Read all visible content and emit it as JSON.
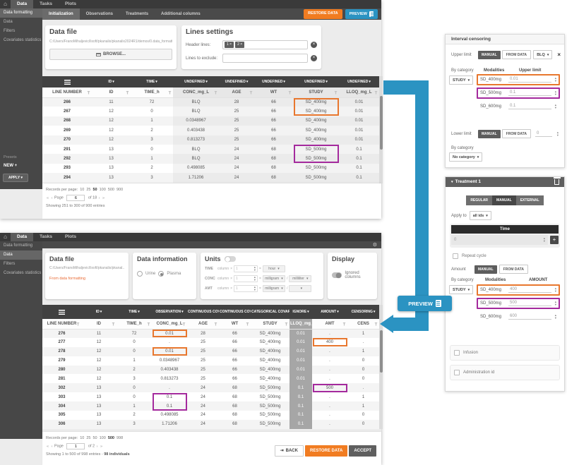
{
  "colors": {
    "accent_blue": "#2b93c2",
    "accent_orange": "#f17c21",
    "highlight_orange": "#e8772e",
    "highlight_purple": "#a42a9d"
  },
  "nav": {
    "home_icon": "⌂",
    "tabs": [
      "Data",
      "Tasks",
      "Plots"
    ],
    "active_tab": "Data"
  },
  "top_panel": {
    "sidebar": {
      "items": [
        "Data formatting",
        "Data",
        "Filters",
        "Covariates statistics"
      ],
      "active_item": "Data formatting",
      "presets_label": "Presets",
      "new_label": "NEW",
      "new_plus": "+",
      "apply_label": "APPLY ▾"
    },
    "tabs": [
      "Initialization",
      "Observations",
      "Treatments",
      "Additional columns"
    ],
    "active_tab": "Initialization",
    "restore_data_label": "RESTORE DATA",
    "preview_label": "PREVIEW",
    "data_file": {
      "title": "Data file",
      "path": "C:/Users/FranoMihaljevic/lixoft/pkanalix/pkanalix2024R1/demos/0.data_formatting/data/units_BLQ_tags_data...",
      "browse_label": "BROWSE..."
    },
    "lines_settings": {
      "title": "Lines settings",
      "header_lines_label": "Header lines:",
      "header_line_chips": [
        "1 ×",
        "2 ×"
      ],
      "lines_to_exclude_label": "Lines to exclude:"
    },
    "table": {
      "type_headers": [
        "ID",
        "TIME",
        "UNDEFINED",
        "UNDEFINED",
        "UNDEFINED",
        "UNDEFINED",
        "UNDEFINED"
      ],
      "column_headers": [
        "LINE NUMBER",
        "ID",
        "TIME_h",
        "CONC_mg_L",
        "AGE",
        "WT",
        "STUDY",
        "LLOQ_mg_L"
      ],
      "rows": [
        {
          "cells": [
            "266",
            "11",
            "72",
            "BLQ",
            "28",
            "66",
            "SD_400mg",
            "0.01"
          ],
          "hl": [
            {
              "col": 6,
              "color": "orange",
              "pos": "top"
            }
          ]
        },
        {
          "cells": [
            "267",
            "12",
            "0",
            "BLQ",
            "25",
            "66",
            "SD_400mg",
            "0.01"
          ],
          "hl": [
            {
              "col": 6,
              "color": "orange",
              "pos": "bottom"
            }
          ]
        },
        {
          "cells": [
            "268",
            "12",
            "1",
            "0.0348967",
            "25",
            "66",
            "SD_400mg",
            "0.01"
          ]
        },
        {
          "cells": [
            "269",
            "12",
            "2",
            "0.403438",
            "25",
            "66",
            "SD_400mg",
            "0.01"
          ]
        },
        {
          "cells": [
            "270",
            "12",
            "3",
            "0.813273",
            "25",
            "66",
            "SD_400mg",
            "0.01"
          ]
        },
        {
          "cells": [
            "291",
            "13",
            "0",
            "BLQ",
            "24",
            "68",
            "SD_500mg",
            "0.1"
          ],
          "hl": [
            {
              "col": 6,
              "color": "purple",
              "pos": "top"
            }
          ]
        },
        {
          "cells": [
            "292",
            "13",
            "1",
            "BLQ",
            "24",
            "68",
            "SD_500mg",
            "0.1"
          ],
          "hl": [
            {
              "col": 6,
              "color": "purple",
              "pos": "bottom"
            }
          ]
        },
        {
          "cells": [
            "293",
            "13",
            "2",
            "0.498085",
            "24",
            "68",
            "SD_500mg",
            "0.1"
          ]
        },
        {
          "cells": [
            "294",
            "13",
            "3",
            "1.71206",
            "24",
            "68",
            "SD_500mg",
            "0.1"
          ]
        }
      ]
    },
    "pagination": {
      "records_label": "Records per page:",
      "options": [
        "10",
        "25",
        "50",
        "100",
        "500",
        "900"
      ],
      "selected": "50",
      "first": "«",
      "prev": "‹",
      "page_label": "Page",
      "page_value": "6",
      "of_label": "of 18",
      "next": "›",
      "last": "»",
      "showing": "Showing 251 to 300 of 900 entries"
    }
  },
  "bottom_panel": {
    "sidebar": {
      "items": [
        "Data formatting",
        "Data",
        "Filters",
        "Covariates statistics"
      ],
      "active_item": "Data"
    },
    "data_file": {
      "title": "Data file",
      "path": "C:/Users/FranoMihaljevic/lixoft/pkanalix/pkanal...",
      "source_link": "From data formatting"
    },
    "data_information": {
      "title": "Data information",
      "options": [
        "Urine",
        "Plasma"
      ],
      "selected": "Plasma"
    },
    "units": {
      "title": "Units",
      "column_placeholder": "column",
      "multiply": "×",
      "equals": "=",
      "divide": "/",
      "rows": [
        {
          "label": "TIME",
          "value": "1",
          "unit1": "hour"
        },
        {
          "label": "CONC",
          "value": "1",
          "unit1": "milligram",
          "unit2": "milliliter"
        },
        {
          "label": "AMT",
          "value": "1",
          "unit1": "milligram",
          "unit2": ""
        }
      ]
    },
    "display": {
      "title": "Display",
      "toggle_label": "Ignored columns"
    },
    "table": {
      "type_headers": [
        "ID",
        "TIME",
        "OBSERVATION",
        "CONTINUOUS COVARIATE",
        "CONTINUOUS COVARIATE",
        "CATEGORICAL COVARIATE",
        "IGNORE",
        "AMOUNT",
        "CENSORING"
      ],
      "column_headers": [
        "LINE NUMBER",
        "ID",
        "TIME_h",
        "CONC_mg_L",
        "AGE",
        "WT",
        "STUDY",
        "LLOQ_mg_L",
        "AMT",
        "CENS"
      ],
      "rows": [
        {
          "cells": [
            "276",
            "11",
            "72",
            "0.01",
            "28",
            "66",
            "SD_400mg",
            "0.01",
            ".",
            "1"
          ],
          "hl": [
            {
              "col": 3,
              "color": "orange",
              "pos": "solo"
            }
          ]
        },
        {
          "cells": [
            "277",
            "12",
            "0",
            ".",
            "25",
            "66",
            "SD_400mg",
            "0.01",
            "400",
            "."
          ],
          "hl": [
            {
              "col": 8,
              "color": "orange",
              "pos": "solo"
            }
          ]
        },
        {
          "cells": [
            "278",
            "12",
            "0",
            "0.01",
            "25",
            "66",
            "SD_400mg",
            "0.01",
            ".",
            "1"
          ],
          "hl": [
            {
              "col": 3,
              "color": "orange",
              "pos": "solo"
            }
          ]
        },
        {
          "cells": [
            "279",
            "12",
            "1",
            "0.0348967",
            "25",
            "66",
            "SD_400mg",
            "0.01",
            ".",
            "0"
          ]
        },
        {
          "cells": [
            "280",
            "12",
            "2",
            "0.403438",
            "25",
            "66",
            "SD_400mg",
            "0.01",
            ".",
            "0"
          ]
        },
        {
          "cells": [
            "281",
            "12",
            "3",
            "0.813273",
            "25",
            "66",
            "SD_400mg",
            "0.01",
            ".",
            "0"
          ]
        },
        {
          "cells": [
            "302",
            "13",
            "0",
            ".",
            "24",
            "68",
            "SD_500mg",
            "0.1",
            "500",
            "."
          ],
          "hl": [
            {
              "col": 8,
              "color": "purple",
              "pos": "solo"
            }
          ]
        },
        {
          "cells": [
            "303",
            "13",
            "0",
            "0.1",
            "24",
            "68",
            "SD_500mg",
            "0.1",
            ".",
            "1"
          ],
          "hl": [
            {
              "col": 3,
              "color": "purple",
              "pos": "top"
            }
          ]
        },
        {
          "cells": [
            "304",
            "13",
            "1",
            "0.1",
            "24",
            "68",
            "SD_500mg",
            "0.1",
            ".",
            "1"
          ],
          "hl": [
            {
              "col": 3,
              "color": "purple",
              "pos": "bottom"
            }
          ]
        },
        {
          "cells": [
            "305",
            "13",
            "2",
            "0.498085",
            "24",
            "68",
            "SD_500mg",
            "0.1",
            ".",
            "0"
          ]
        },
        {
          "cells": [
            "306",
            "13",
            "3",
            "1.71206",
            "24",
            "68",
            "SD_500mg",
            "0.1",
            ".",
            "0"
          ]
        }
      ]
    },
    "pagination": {
      "records_label": "Records per page:",
      "options": [
        "10",
        "25",
        "50",
        "100",
        "500",
        "998"
      ],
      "selected": "500",
      "first": "«",
      "prev": "‹",
      "page_label": "Page",
      "page_value": "1",
      "of_label": "of 2",
      "next": "›",
      "last": "»",
      "showing": "Showing 1 to 500 of 998 entries - ",
      "individuals": "98 individuals"
    },
    "footer": {
      "back_label": "BACK",
      "restore_data_label": "RESTORE DATA",
      "accept_label": "ACCEPT"
    }
  },
  "censoring_panel": {
    "title": "Interval censoring",
    "upper_limit_label": "Upper limit",
    "manual_label": "MANUAL",
    "from_data_label": "FROM DATA",
    "tag_value": "BLQ",
    "close_label": "×",
    "by_category_label": "By category",
    "category_value": "STUDY",
    "modalities_header": "Modalities",
    "upper_limit_header": "Upper limit",
    "modalities": [
      {
        "name": "SD_400mg",
        "value": "0.01",
        "highlight": "orange"
      },
      {
        "name": "SD_500mg",
        "value": "0.1",
        "highlight": "purple"
      },
      {
        "name": "SD_600mg",
        "value": "0.1"
      }
    ],
    "lower_limit_label": "Lower limit",
    "lower_limit_value": "0",
    "by_category2_label": "By category",
    "no_category_value": "No category"
  },
  "treatment_panel": {
    "title": "Treatment 1",
    "modes": [
      "REGULAR",
      "MANUAL",
      "EXTERNAL"
    ],
    "active_mode": "MANUAL",
    "apply_to_label": "Apply to",
    "apply_to_value": "all ids",
    "time_header": "Time",
    "time_value": "0",
    "add_label": "+",
    "repeat_cycle_label": "Repeat cycle",
    "amount_label": "Amount",
    "manual_label": "MANUAL",
    "from_data_label": "FROM DATA",
    "by_category_label": "By category",
    "category_value": "STUDY",
    "modalities_header": "Modalities",
    "amount_header": "AMOUNT",
    "modalities": [
      {
        "name": "SD_400mg",
        "value": "400",
        "highlight": "orange"
      },
      {
        "name": "SD_500mg",
        "value": "500",
        "highlight": "purple"
      },
      {
        "name": "SD_600mg",
        "value": "600"
      }
    ],
    "infusion_label": "Infusion",
    "administration_id_label": "Administration id"
  },
  "flow": {
    "preview_label": "PREVIEW"
  }
}
